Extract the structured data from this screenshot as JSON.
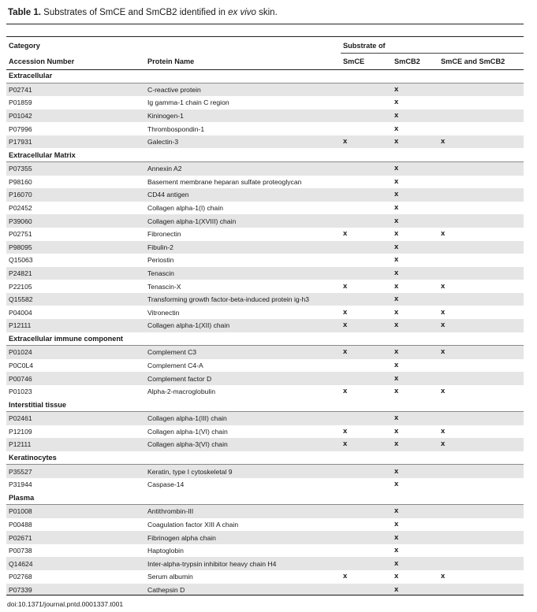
{
  "caption": {
    "label": "Table 1.",
    "text_before": " Substrates of SmCE and SmCB2 identified in ",
    "italic": "ex vivo",
    "text_after": " skin."
  },
  "header": {
    "category": "Category",
    "substrate_of": "Substrate of",
    "accession": "Accession Number",
    "protein": "Protein Name",
    "smce": "SmCE",
    "smcb2": "SmCB2",
    "both": "SmCE and SmCB2"
  },
  "mark": "x",
  "groups": [
    {
      "name": "Extracellular",
      "rows": [
        [
          "P02741",
          "C-reactive protein",
          "",
          "x",
          ""
        ],
        [
          "P01859",
          "Ig gamma-1 chain C region",
          "",
          "x",
          ""
        ],
        [
          "P01042",
          "Kininogen-1",
          "",
          "x",
          ""
        ],
        [
          "P07996",
          "Thrombospondin-1",
          "",
          "x",
          ""
        ],
        [
          "P17931",
          "Galectin-3",
          "x",
          "x",
          "x"
        ]
      ]
    },
    {
      "name": "Extracellular Matrix",
      "rows": [
        [
          "P07355",
          "Annexin A2",
          "",
          "x",
          ""
        ],
        [
          "P98160",
          "Basement membrane heparan sulfate proteoglycan",
          "",
          "x",
          ""
        ],
        [
          "P16070",
          "CD44 antigen",
          "",
          "x",
          ""
        ],
        [
          "P02452",
          "Collagen alpha-1(I) chain",
          "",
          "x",
          ""
        ],
        [
          "P39060",
          "Collagen alpha-1(XVIII) chain",
          "",
          "x",
          ""
        ],
        [
          "P02751",
          "Fibronectin",
          "x",
          "x",
          "x"
        ],
        [
          "P98095",
          "Fibulin-2",
          "",
          "x",
          ""
        ],
        [
          "Q15063",
          "Periostin",
          "",
          "x",
          ""
        ],
        [
          "P24821",
          "Tenascin",
          "",
          "x",
          ""
        ],
        [
          "P22105",
          "Tenascin-X",
          "x",
          "x",
          "x"
        ],
        [
          "Q15582",
          "Transforming growth factor-beta-induced protein ig-h3",
          "",
          "x",
          ""
        ],
        [
          "P04004",
          "Vitronectin",
          "x",
          "x",
          "x"
        ],
        [
          "P12111",
          "Collagen alpha-1(XII) chain",
          "x",
          "x",
          "x"
        ]
      ]
    },
    {
      "name": "Extracellular immune component",
      "rows": [
        [
          "P01024",
          "Complement C3",
          "x",
          "x",
          "x"
        ],
        [
          "P0C0L4",
          "Complement C4-A",
          "",
          "x",
          ""
        ],
        [
          "P00746",
          "Complement factor D",
          "",
          "x",
          ""
        ],
        [
          "P01023",
          "Alpha-2-macroglobulin",
          "x",
          "x",
          "x"
        ]
      ]
    },
    {
      "name": "Interstitial tissue",
      "rows": [
        [
          "P02461",
          "Collagen alpha-1(III) chain",
          "",
          "x",
          ""
        ],
        [
          "P12109",
          "Collagen alpha-1(VI) chain",
          "x",
          "x",
          "x"
        ],
        [
          "P12111",
          "Collagen alpha-3(VI) chain",
          "x",
          "x",
          "x"
        ]
      ]
    },
    {
      "name": "Keratinocytes",
      "rows": [
        [
          "P35527",
          "Keratin, type I cytoskeletal 9",
          "",
          "x",
          ""
        ],
        [
          "P31944",
          "Caspase-14",
          "",
          "x",
          ""
        ]
      ]
    },
    {
      "name": "Plasma",
      "rows": [
        [
          "P01008",
          "Antithrombin-III",
          "",
          "x",
          ""
        ],
        [
          "P00488",
          "Coagulation factor XIII A chain",
          "",
          "x",
          ""
        ],
        [
          "P02671",
          "Fibrinogen alpha chain",
          "",
          "x",
          ""
        ],
        [
          "P00738",
          "Haptoglobin",
          "",
          "x",
          ""
        ],
        [
          "Q14624",
          "Inter-alpha-trypsin inhibitor heavy chain H4",
          "",
          "x",
          ""
        ],
        [
          "P02768",
          "Serum albumin",
          "x",
          "x",
          "x"
        ],
        [
          "P07339",
          "Cathepsin D",
          "",
          "x",
          ""
        ]
      ]
    }
  ],
  "doi": "doi:10.1371/journal.pntd.0001337.t001"
}
